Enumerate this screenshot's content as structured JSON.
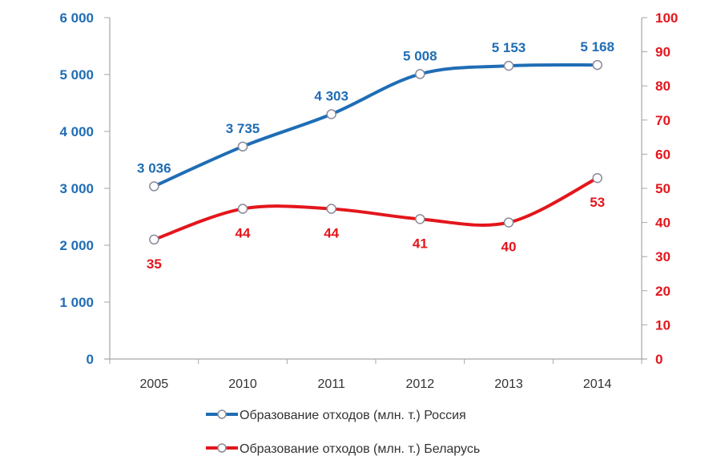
{
  "colors": {
    "russia": "#1f6db5",
    "belarus": "#e3161c",
    "axis": "#a6a6a6"
  },
  "chart_data": {
    "type": "line",
    "title": "",
    "categories": [
      "2005",
      "2010",
      "2011",
      "2012",
      "2013",
      "2014"
    ],
    "series": [
      {
        "name": "Образование отходов (млн. т.) Россия",
        "axis": "left",
        "values": [
          3036,
          3735,
          4303,
          5008,
          5153,
          5168
        ],
        "labels": [
          "3 036",
          "3 735",
          "4 303",
          "5 008",
          "5 153",
          "5 168"
        ]
      },
      {
        "name": "Образование отходов (млн. т.) Беларусь",
        "axis": "right",
        "values": [
          35,
          44,
          44,
          41,
          40,
          53
        ],
        "labels": [
          "35",
          "44",
          "44",
          "41",
          "40",
          "53"
        ]
      }
    ],
    "y_left": {
      "range": [
        0,
        6000
      ],
      "ticks": [
        "0",
        "1 000",
        "2 000",
        "3 000",
        "4 000",
        "5 000",
        "6 000"
      ]
    },
    "y_right": {
      "range": [
        0,
        100
      ],
      "ticks": [
        "0",
        "10",
        "20",
        "30",
        "40",
        "50",
        "60",
        "70",
        "80",
        "90",
        "100"
      ]
    },
    "grid": false,
    "legend": "bottom"
  }
}
